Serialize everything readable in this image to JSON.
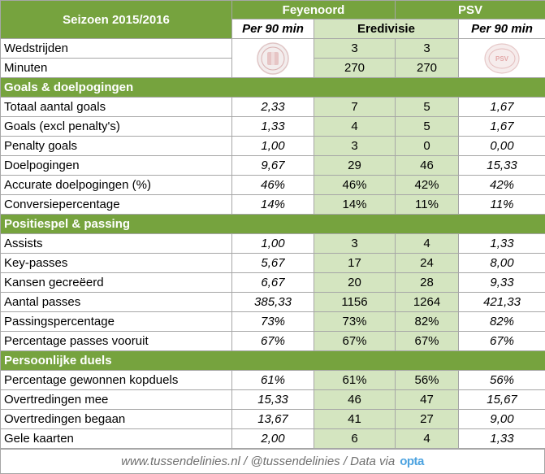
{
  "header": {
    "season": "Seizoen 2015/2016",
    "team_home": "Feyenoord",
    "team_away": "PSV",
    "sub_home": "Per 90 min",
    "sub_mid": "Eredivisie",
    "sub_away": "Per 90 min"
  },
  "general": [
    {
      "label": "Wedstrijden",
      "home": "3",
      "away": "3"
    },
    {
      "label": "Minuten",
      "home": "270",
      "away": "270"
    }
  ],
  "sections": [
    {
      "title": "Goals & doelpogingen",
      "rows": [
        {
          "label": "Totaal aantal goals",
          "home_p90": "2,33",
          "home": "7",
          "away": "5",
          "away_p90": "1,67"
        },
        {
          "label": "Goals (excl penalty's)",
          "home_p90": "1,33",
          "home": "4",
          "away": "5",
          "away_p90": "1,67"
        },
        {
          "label": "Penalty goals",
          "home_p90": "1,00",
          "home": "3",
          "away": "0",
          "away_p90": "0,00"
        },
        {
          "label": "Doelpogingen",
          "home_p90": "9,67",
          "home": "29",
          "away": "46",
          "away_p90": "15,33"
        },
        {
          "label": "Accurate doelpogingen (%)",
          "home_p90": "46%",
          "home": "46%",
          "away": "42%",
          "away_p90": "42%"
        },
        {
          "label": "Conversiepercentage",
          "home_p90": "14%",
          "home": "14%",
          "away": "11%",
          "away_p90": "11%"
        }
      ]
    },
    {
      "title": "Positiespel & passing",
      "rows": [
        {
          "label": "Assists",
          "home_p90": "1,00",
          "home": "3",
          "away": "4",
          "away_p90": "1,33"
        },
        {
          "label": "Key-passes",
          "home_p90": "5,67",
          "home": "17",
          "away": "24",
          "away_p90": "8,00"
        },
        {
          "label": "Kansen gecreëerd",
          "home_p90": "6,67",
          "home": "20",
          "away": "28",
          "away_p90": "9,33"
        },
        {
          "label": "Aantal passes",
          "home_p90": "385,33",
          "home": "1156",
          "away": "1264",
          "away_p90": "421,33"
        },
        {
          "label": "Passingspercentage",
          "home_p90": "73%",
          "home": "73%",
          "away": "82%",
          "away_p90": "82%"
        },
        {
          "label": "Percentage passes vooruit",
          "home_p90": "67%",
          "home": "67%",
          "away": "67%",
          "away_p90": "67%"
        }
      ]
    },
    {
      "title": "Persoonlijke duels",
      "rows": [
        {
          "label": "Percentage gewonnen kopduels",
          "home_p90": "61%",
          "home": "61%",
          "away": "56%",
          "away_p90": "56%"
        },
        {
          "label": "Overtredingen mee",
          "home_p90": "15,33",
          "home": "46",
          "away": "47",
          "away_p90": "15,67"
        },
        {
          "label": "Overtredingen begaan",
          "home_p90": "13,67",
          "home": "41",
          "away": "27",
          "away_p90": "9,00"
        },
        {
          "label": "Gele kaarten",
          "home_p90": "2,00",
          "home": "6",
          "away": "4",
          "away_p90": "1,33"
        }
      ]
    }
  ],
  "logos": {
    "home": "Feyenoord crest (faded watermark)",
    "away": "PSV crest (faded watermark)",
    "away_text": "PSV"
  },
  "footer": {
    "text": "www.tussendelinies.nl / @tussendelinies / Data via",
    "brand": "opta"
  },
  "colors": {
    "header_green": "#76a33e",
    "light_green": "#d4e5c0",
    "border": "#a6a6a6",
    "opta_blue": "#4da3e0"
  }
}
